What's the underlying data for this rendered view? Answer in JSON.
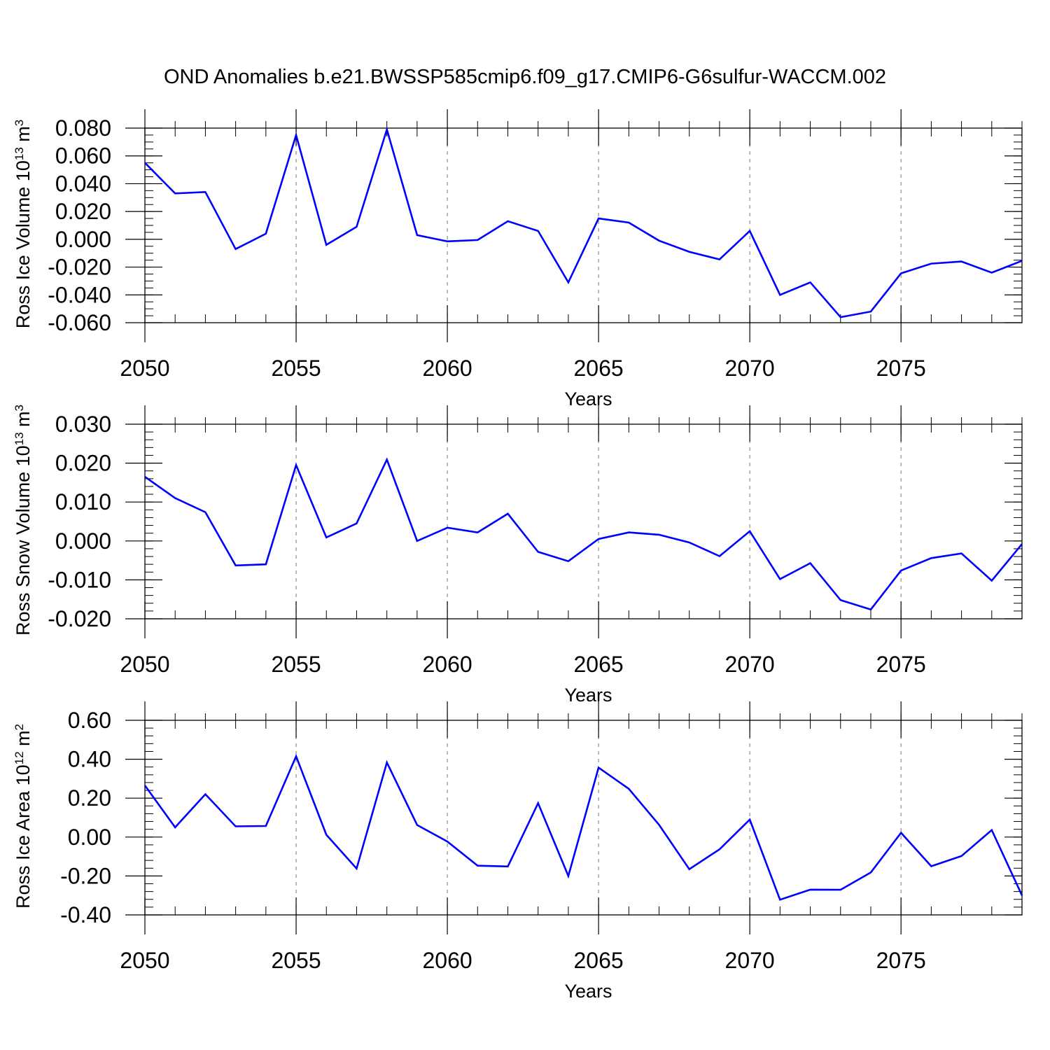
{
  "figure": {
    "title": "OND Anomalies b.e21.BWSSP585cmip6.f09_g17.CMIP6-G6sulfur-WACCM.002"
  },
  "colors": {
    "series": "#0000ff",
    "axis": "#000000",
    "grid": "#8c8c8c"
  },
  "chart_data": [
    {
      "type": "line",
      "ylabel": {
        "base": "Ross Ice Volume 10",
        "exp": "13",
        "unit": " m",
        "unit_exp": "3"
      },
      "xlabel": "Years",
      "xlim": [
        2050,
        2079
      ],
      "ylim": [
        -0.06,
        0.08
      ],
      "yticks": [
        -0.06,
        -0.04,
        -0.02,
        0.0,
        0.02,
        0.04,
        0.06,
        0.08
      ],
      "yticklabels": [
        "-0.060",
        "-0.040",
        "-0.020",
        "0.000",
        "0.020",
        "0.040",
        "0.060",
        "0.080"
      ],
      "yminor_step": 0.005,
      "xticks": [
        2050,
        2055,
        2060,
        2065,
        2070,
        2075
      ],
      "xticklabels": [
        "2050",
        "2055",
        "2060",
        "2065",
        "2070",
        "2075"
      ],
      "grid": "x-dashed",
      "x": [
        2050,
        2051,
        2052,
        2053,
        2054,
        2055,
        2056,
        2057,
        2058,
        2059,
        2060,
        2061,
        2062,
        2063,
        2064,
        2065,
        2066,
        2067,
        2068,
        2069,
        2070,
        2071,
        2072,
        2073,
        2074,
        2075,
        2076,
        2077,
        2078,
        2079
      ],
      "series": [
        {
          "values": [
            0.055,
            0.033,
            0.034,
            -0.007,
            0.004,
            0.075,
            -0.004,
            0.009,
            0.079,
            0.003,
            -0.0015,
            -0.0005,
            0.013,
            0.006,
            -0.031,
            0.015,
            0.012,
            -0.001,
            -0.009,
            -0.0145,
            0.006,
            -0.04,
            -0.031,
            -0.056,
            -0.052,
            -0.0245,
            -0.0175,
            -0.016,
            -0.024,
            -0.0155
          ]
        }
      ]
    },
    {
      "type": "line",
      "ylabel": {
        "base": "Ross Snow Volume 10",
        "exp": "13",
        "unit": " m",
        "unit_exp": "3"
      },
      "xlabel": "Years",
      "xlim": [
        2050,
        2079
      ],
      "ylim": [
        -0.02,
        0.03
      ],
      "yticks": [
        -0.02,
        -0.01,
        0.0,
        0.01,
        0.02,
        0.03
      ],
      "yticklabels": [
        "-0.020",
        "-0.010",
        "0.000",
        "0.010",
        "0.020",
        "0.030"
      ],
      "yminor_step": 0.002,
      "xticks": [
        2050,
        2055,
        2060,
        2065,
        2070,
        2075
      ],
      "xticklabels": [
        "2050",
        "2055",
        "2060",
        "2065",
        "2070",
        "2075"
      ],
      "grid": "x-dashed",
      "x": [
        2050,
        2051,
        2052,
        2053,
        2054,
        2055,
        2056,
        2057,
        2058,
        2059,
        2060,
        2061,
        2062,
        2063,
        2064,
        2065,
        2066,
        2067,
        2068,
        2069,
        2070,
        2071,
        2072,
        2073,
        2074,
        2075,
        2076,
        2077,
        2078,
        2079
      ],
      "series": [
        {
          "values": [
            0.0165,
            0.011,
            0.0074,
            -0.0063,
            -0.006,
            0.0195,
            0.0009,
            0.0045,
            0.0209,
            0.0,
            0.0034,
            0.0022,
            0.007,
            -0.0028,
            -0.0052,
            0.0005,
            0.0022,
            0.0016,
            -0.0004,
            -0.0039,
            0.0025,
            -0.0098,
            -0.0057,
            -0.0152,
            -0.0176,
            -0.0076,
            -0.0044,
            -0.0032,
            -0.0102,
            -0.0008
          ]
        }
      ]
    },
    {
      "type": "line",
      "ylabel": {
        "base": "Ross Ice Area 10",
        "exp": "12",
        "unit": " m",
        "unit_exp": "2"
      },
      "xlabel": "Years",
      "xlim": [
        2050,
        2079
      ],
      "ylim": [
        -0.4,
        0.6
      ],
      "yticks": [
        -0.4,
        -0.2,
        0.0,
        0.2,
        0.4,
        0.6
      ],
      "yticklabels": [
        "-0.40",
        "-0.20",
        "0.00",
        "0.20",
        "0.40",
        "0.60"
      ],
      "yminor_step": 0.04,
      "xticks": [
        2050,
        2055,
        2060,
        2065,
        2070,
        2075
      ],
      "xticklabels": [
        "2050",
        "2055",
        "2060",
        "2065",
        "2070",
        "2075"
      ],
      "grid": "x-dashed",
      "x": [
        2050,
        2051,
        2052,
        2053,
        2054,
        2055,
        2056,
        2057,
        2058,
        2059,
        2060,
        2061,
        2062,
        2063,
        2064,
        2065,
        2066,
        2067,
        2068,
        2069,
        2070,
        2071,
        2072,
        2073,
        2074,
        2075,
        2076,
        2077,
        2078,
        2079
      ],
      "series": [
        {
          "values": [
            0.265,
            0.05,
            0.22,
            0.055,
            0.057,
            0.415,
            0.012,
            -0.162,
            0.383,
            0.062,
            -0.023,
            -0.147,
            -0.151,
            0.174,
            -0.2,
            0.357,
            0.248,
            0.063,
            -0.165,
            -0.063,
            0.09,
            -0.322,
            -0.27,
            -0.271,
            -0.182,
            0.022,
            -0.15,
            -0.097,
            0.036,
            -0.3
          ]
        }
      ]
    }
  ]
}
